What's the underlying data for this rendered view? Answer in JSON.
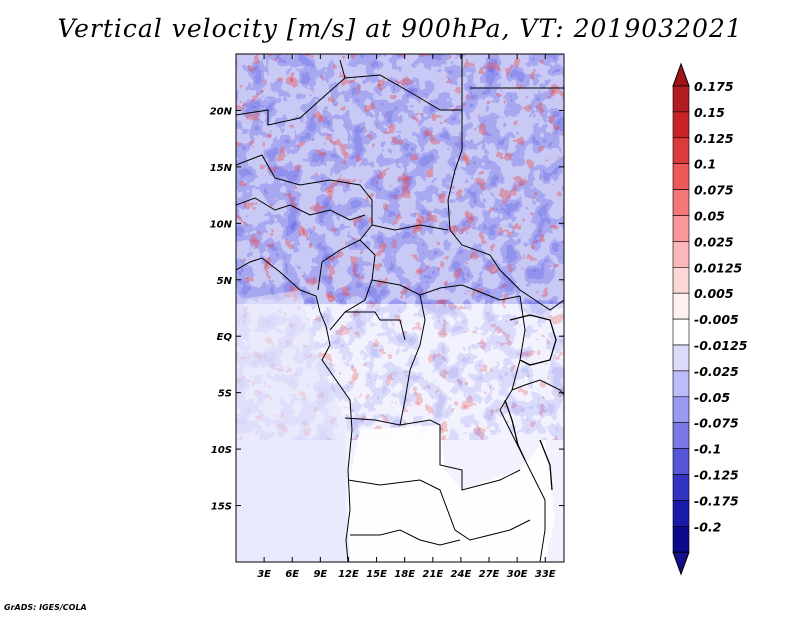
{
  "title": "Vertical velocity [m/s] at 900hPa, VT: 2019032021",
  "credit": "GrADS: IGES/COLA",
  "chart_data": {
    "type": "heatmap",
    "variable": "Vertical velocity",
    "units": "m/s",
    "level": "900hPa",
    "valid_time": "2019032021",
    "lon_range": [
      0,
      35
    ],
    "lat_range": [
      -20,
      25
    ],
    "x_ticks": [
      "3E",
      "6E",
      "9E",
      "12E",
      "15E",
      "18E",
      "21E",
      "24E",
      "27E",
      "30E",
      "33E"
    ],
    "x_tick_values": [
      3,
      6,
      9,
      12,
      15,
      18,
      21,
      24,
      27,
      30,
      33
    ],
    "y_ticks": [
      "20N",
      "15N",
      "10N",
      "5N",
      "EQ",
      "5S",
      "10S",
      "15S"
    ],
    "y_tick_values": [
      20,
      15,
      10,
      5,
      0,
      -5,
      -10,
      -15
    ],
    "colorbar": {
      "labels": [
        "0.175",
        "0.15",
        "0.125",
        "0.1",
        "0.075",
        "0.05",
        "0.025",
        "0.0125",
        "0.005",
        "-0.005",
        "-0.0125",
        "-0.025",
        "-0.05",
        "-0.075",
        "-0.1",
        "-0.125",
        "-0.175",
        "-0.2"
      ],
      "colors": [
        "#b01c20",
        "#c82428",
        "#dd3a3c",
        "#ed5858",
        "#f57878",
        "#f99898",
        "#fcb8b8",
        "#fdd6d6",
        "#fff0f0",
        "#ffffff",
        "#dcdcfa",
        "#bcbcf8",
        "#9a9af2",
        "#7878e6",
        "#5656d8",
        "#3434c2",
        "#1a1aaa",
        "#0a0a8a"
      ],
      "top_color": "#a01418",
      "bottom_color": "#14108c"
    }
  }
}
